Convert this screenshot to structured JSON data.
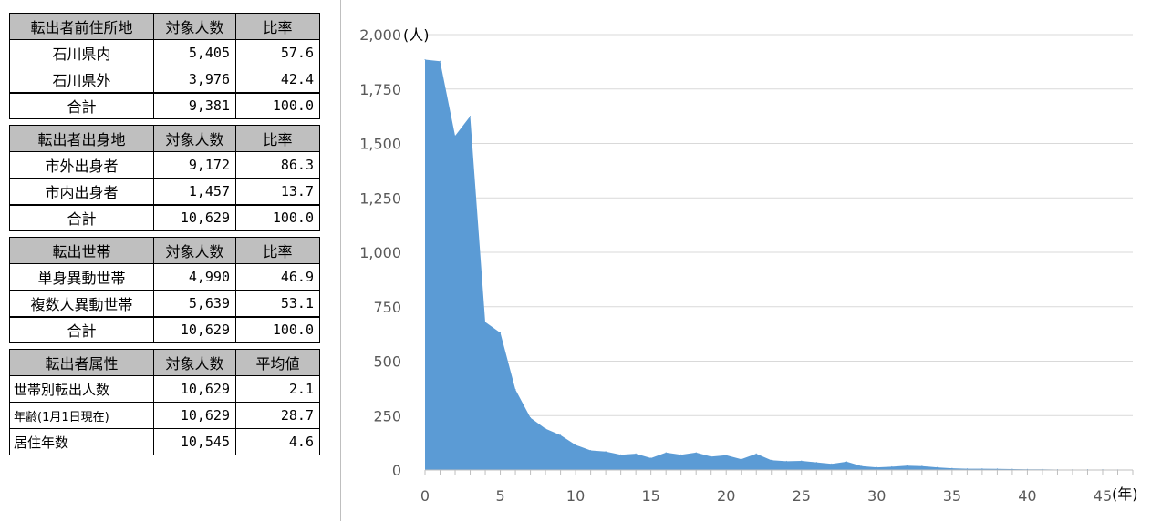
{
  "tables": [
    {
      "header": [
        "転出者前住所地",
        "対象人数",
        "比率"
      ],
      "rows": [
        [
          "石川県内",
          "5,405",
          "57.6"
        ],
        [
          "石川県外",
          "3,976",
          "42.4"
        ]
      ],
      "total": [
        "合計",
        "9,381",
        "100.0"
      ]
    },
    {
      "header": [
        "転出者出身地",
        "対象人数",
        "比率"
      ],
      "rows": [
        [
          "市外出身者",
          "9,172",
          "86.3"
        ],
        [
          "市内出身者",
          "1,457",
          "13.7"
        ]
      ],
      "total": [
        "合計",
        "10,629",
        "100.0"
      ]
    },
    {
      "header": [
        "転出世帯",
        "対象人数",
        "比率"
      ],
      "rows": [
        [
          "単身異動世帯",
          "4,990",
          "46.9"
        ],
        [
          "複数人異動世帯",
          "5,639",
          "53.1"
        ]
      ],
      "total": [
        "合計",
        "10,629",
        "100.0"
      ]
    },
    {
      "header": [
        "転出者属性",
        "対象人数",
        "平均値"
      ],
      "rows": [
        [
          "世帯別転出人数",
          "10,629",
          "2.1"
        ],
        [
          "年齢(1月1日現在)",
          "10,629",
          "28.7"
        ],
        [
          "居住年数",
          "10,545",
          "4.6"
        ]
      ]
    }
  ],
  "chart_data": {
    "type": "area",
    "title": "",
    "xlabel": "(年)",
    "ylabel": "(人)",
    "ylim": [
      0,
      2000
    ],
    "xlim": [
      0,
      47
    ],
    "yticks": [
      "0",
      "250",
      "500",
      "750",
      "1,000",
      "1,250",
      "1,500",
      "1,750",
      "2,000"
    ],
    "xticks": [
      "0",
      "5",
      "10",
      "15",
      "20",
      "25",
      "30",
      "35",
      "40",
      "45"
    ],
    "grid": true,
    "color": "#5b9bd5",
    "x": [
      0,
      1,
      2,
      3,
      4,
      5,
      6,
      7,
      8,
      9,
      10,
      11,
      12,
      13,
      14,
      15,
      16,
      17,
      18,
      19,
      20,
      21,
      22,
      23,
      24,
      25,
      26,
      27,
      28,
      29,
      30,
      31,
      32,
      33,
      34,
      35,
      36,
      37,
      38,
      39,
      40,
      41,
      42,
      43,
      44,
      45,
      46
    ],
    "values": [
      1885,
      1878,
      1535,
      1625,
      680,
      630,
      370,
      240,
      190,
      160,
      115,
      90,
      85,
      70,
      75,
      55,
      80,
      70,
      80,
      62,
      68,
      50,
      75,
      45,
      40,
      42,
      35,
      28,
      38,
      18,
      12,
      15,
      20,
      18,
      12,
      8,
      6,
      6,
      5,
      4,
      3,
      3,
      2,
      2,
      2,
      2,
      1
    ]
  }
}
